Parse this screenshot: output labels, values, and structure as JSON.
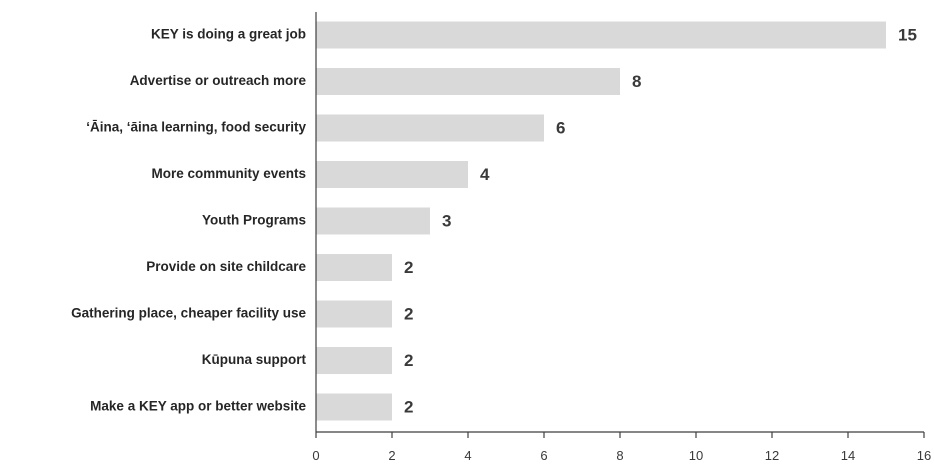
{
  "chart_data": {
    "type": "bar",
    "orientation": "horizontal",
    "title": "",
    "xlabel": "",
    "ylabel": "",
    "categories": [
      "KEY is doing a great job",
      "Advertise or outreach more",
      "ʻĀina, ʻāina learning, food security",
      "More community events",
      "Youth Programs",
      "Provide on site childcare",
      "Gathering place, cheaper facility use",
      "Kūpuna support",
      "Make a KEY app or better website"
    ],
    "values": [
      15,
      8,
      6,
      4,
      3,
      2,
      2,
      2,
      2
    ],
    "data_labels": [
      "15",
      "8",
      "6",
      "4",
      "3",
      "2",
      "2",
      "2",
      "2"
    ],
    "xlim": [
      0,
      16
    ],
    "x_ticks": [
      0,
      2,
      4,
      6,
      8,
      10,
      12,
      14,
      16
    ],
    "x_tick_labels": [
      "0",
      "2",
      "4",
      "6",
      "8",
      "10",
      "12",
      "14",
      "16"
    ],
    "grid": false,
    "legend": "none",
    "bar_color": "#d9d9d9",
    "axis_color": "#3f3f3f"
  }
}
